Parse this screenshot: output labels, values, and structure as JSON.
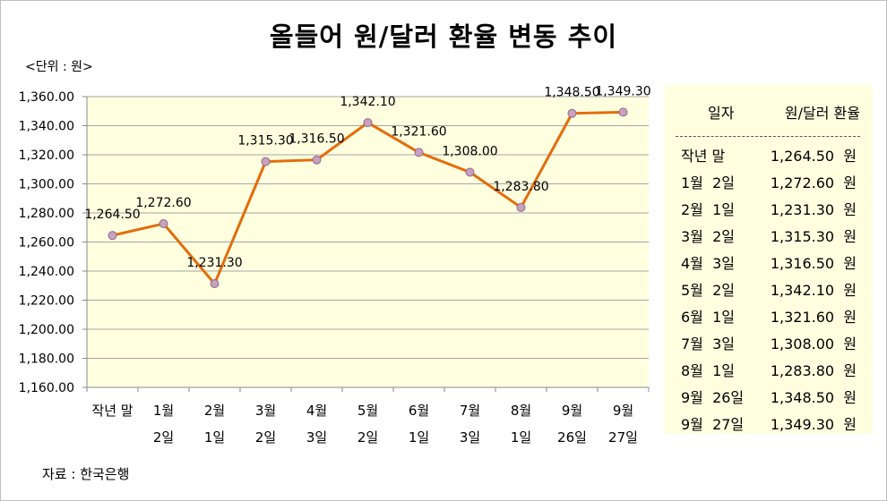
{
  "title": "올들어 원/달러 환율 변동 추이",
  "unit_label": "<단위 : 원>",
  "source": "자료 : 한국은행",
  "chart_data": {
    "type": "line",
    "title": "올들어 원/달러 환율 변동 추이",
    "categories": [
      "작년 말",
      "1월 2일",
      "2월 1일",
      "3월 2일",
      "4월 3일",
      "5월 2일",
      "6월 1일",
      "7월 3일",
      "8월 1일",
      "9월 26일",
      "9월 27일"
    ],
    "category_lines": [
      [
        "작년 말",
        ""
      ],
      [
        "1월",
        "2일"
      ],
      [
        "2월",
        "1일"
      ],
      [
        "3월",
        "2일"
      ],
      [
        "4월",
        "3일"
      ],
      [
        "5월",
        "2일"
      ],
      [
        "6월",
        "1일"
      ],
      [
        "7월",
        "3일"
      ],
      [
        "8월",
        "1일"
      ],
      [
        "9월",
        "26일"
      ],
      [
        "9월",
        "27일"
      ]
    ],
    "values": [
      1264.5,
      1272.6,
      1231.3,
      1315.3,
      1316.5,
      1342.1,
      1321.6,
      1308.0,
      1283.8,
      1348.5,
      1349.3
    ],
    "value_labels": [
      "1,264.50",
      "1,272.60",
      "1,231.30",
      "1,315.30",
      "1,316.50",
      "1,342.10",
      "1,321.60",
      "1,308.00",
      "1,283.80",
      "1,348.50",
      "1,349.30"
    ],
    "ylim": [
      1160,
      1360
    ],
    "yticks": [
      "1,160.00",
      "1,180.00",
      "1,200.00",
      "1,220.00",
      "1,240.00",
      "1,260.00",
      "1,280.00",
      "1,300.00",
      "1,320.00",
      "1,340.00",
      "1,360.00"
    ],
    "grid": true,
    "colors": {
      "line": "#e46c0a",
      "marker": "#c9a0c0",
      "marker_edge": "#8c6d86",
      "plot_bg": "#ffffe0",
      "grid": "#a6a6a6"
    }
  },
  "table": {
    "header_date": "일자",
    "header_rate": "원/달러 환율",
    "rows": [
      {
        "date": "작년 말",
        "rate": "1,264.50  원"
      },
      {
        "date": "1월  2일",
        "rate": "1,272.60  원"
      },
      {
        "date": "2월  1일",
        "rate": "1,231.30  원"
      },
      {
        "date": "3월  2일",
        "rate": "1,315.30  원"
      },
      {
        "date": "4월  3일",
        "rate": "1,316.50  원"
      },
      {
        "date": "5월  2일",
        "rate": "1,342.10  원"
      },
      {
        "date": "6월  1일",
        "rate": "1,321.60  원"
      },
      {
        "date": "7월  3일",
        "rate": "1,308.00  원"
      },
      {
        "date": "8월  1일",
        "rate": "1,283.80  원"
      },
      {
        "date": "9월  26일",
        "rate": "1,348.50  원"
      },
      {
        "date": "9월  27일",
        "rate": "1,349.30  원"
      }
    ]
  }
}
